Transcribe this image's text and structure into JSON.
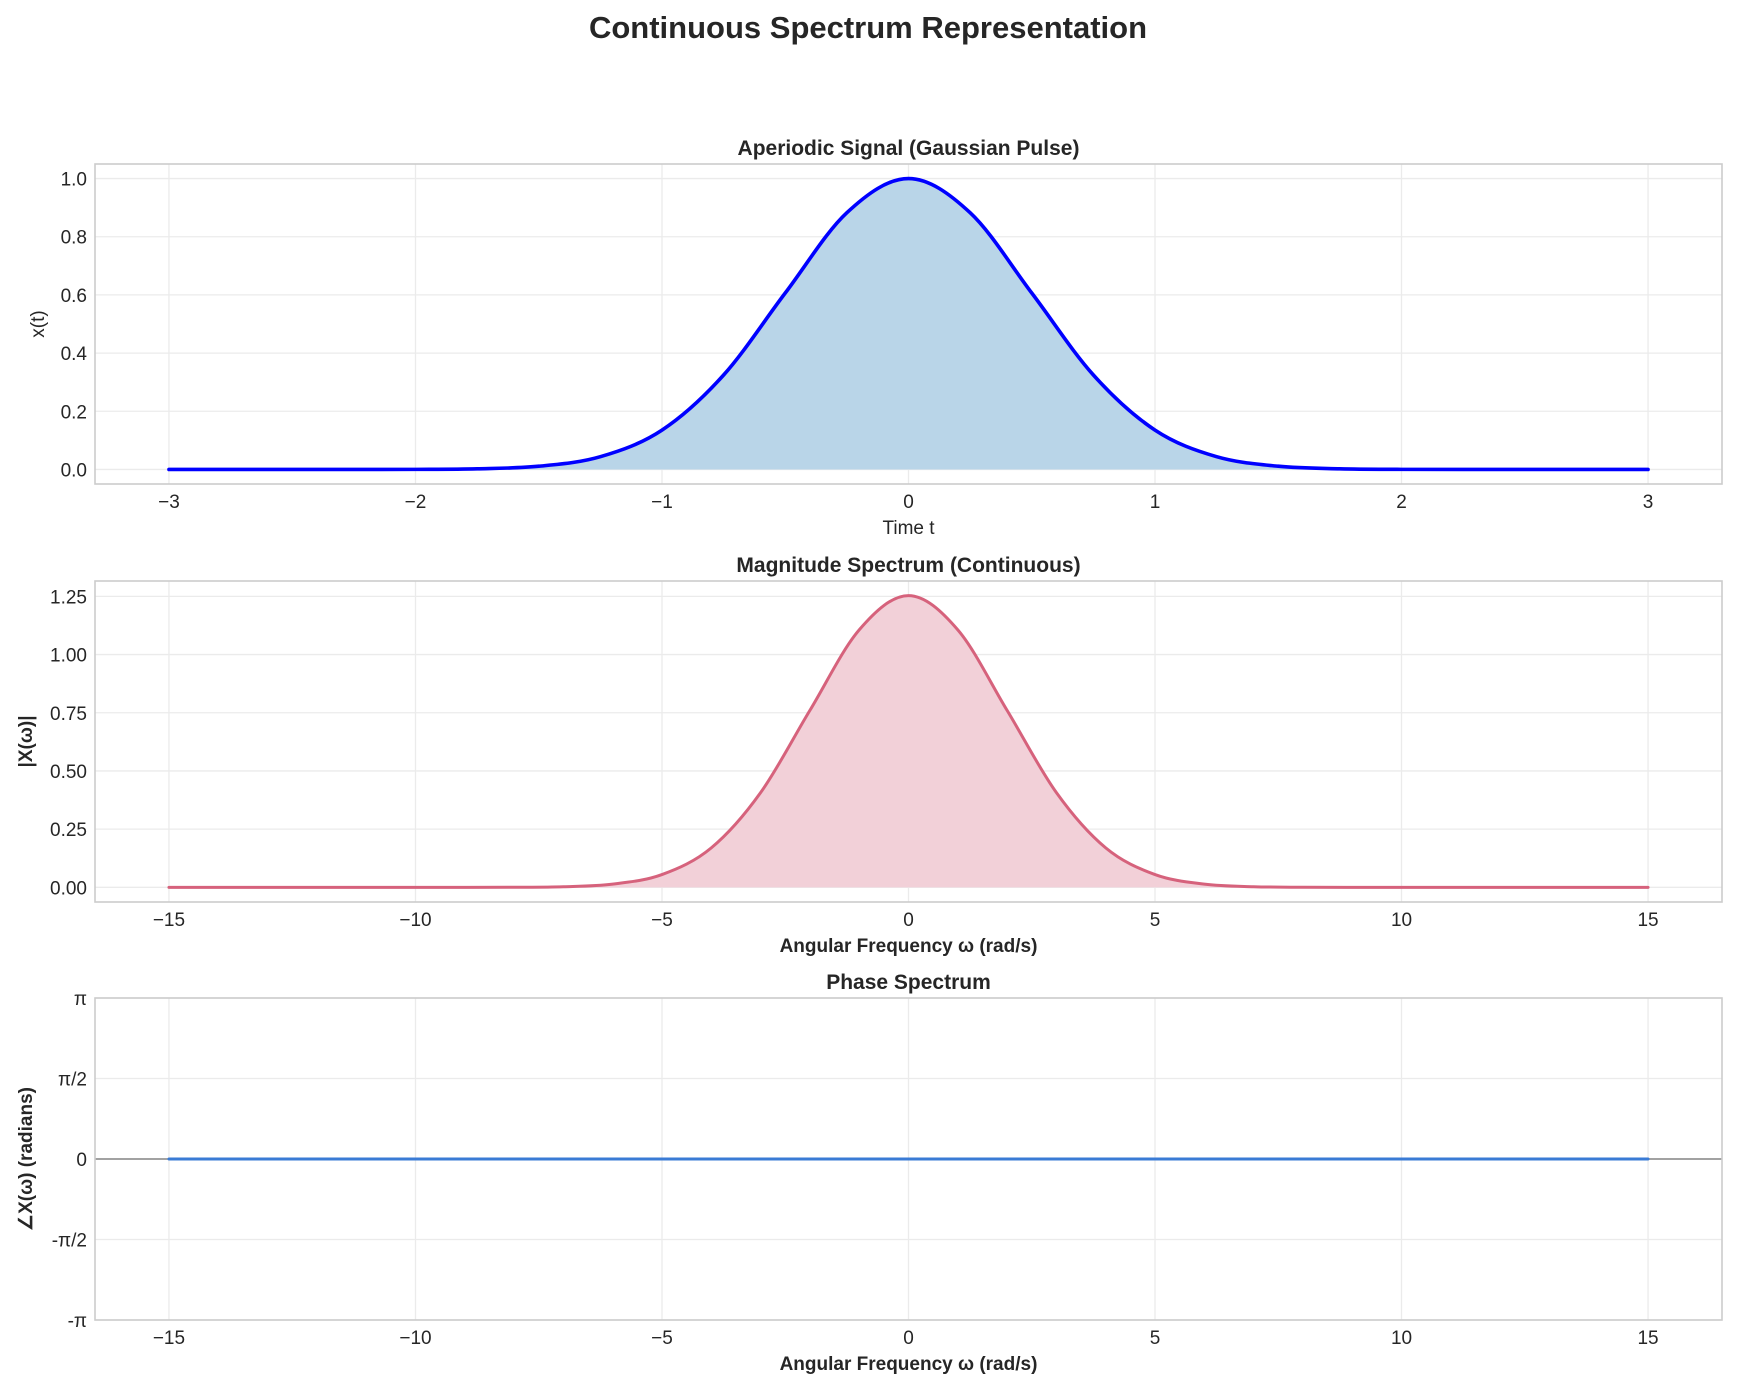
{
  "title": "Continuous Spectrum Representation",
  "chart_data": [
    {
      "type": "area",
      "title": "Aperiodic Signal (Gaussian Pulse)",
      "xlabel": "Time t",
      "ylabel": "x(t)",
      "xlim": [
        -3.3,
        3.3
      ],
      "ylim": [
        -0.05,
        1.05
      ],
      "xticks": [
        -3,
        -2,
        -1,
        0,
        1,
        2,
        3
      ],
      "xtick_labels": [
        "−3",
        "−2",
        "−1",
        "0",
        "1",
        "2",
        "3"
      ],
      "yticks": [
        0,
        0.2,
        0.4,
        0.6,
        0.8,
        1.0
      ],
      "ytick_labels": [
        "0.0",
        "0.2",
        "0.4",
        "0.6",
        "0.8",
        "1.0"
      ],
      "grid": true,
      "line_color": "#0000ff",
      "fill_color": "#b9d5e8",
      "x": [
        -3,
        -2.75,
        -2.5,
        -2.25,
        -2,
        -1.75,
        -1.5,
        -1.25,
        -1,
        -0.75,
        -0.5,
        -0.25,
        0,
        0.25,
        0.5,
        0.75,
        1,
        1.25,
        1.5,
        1.75,
        2,
        2.25,
        2.5,
        2.75,
        3
      ],
      "y": [
        0,
        0,
        0,
        0,
        0.0003,
        0.0022,
        0.0111,
        0.0439,
        0.1353,
        0.3247,
        0.6065,
        0.8825,
        1,
        0.8825,
        0.6065,
        0.3247,
        0.1353,
        0.0439,
        0.0111,
        0.0022,
        0.0003,
        0,
        0,
        0,
        0
      ]
    },
    {
      "type": "area",
      "title": "Magnitude Spectrum (Continuous)",
      "xlabel": "Angular Frequency ω (rad/s)",
      "ylabel": "|X(ω)|",
      "xlim": [
        -16.5,
        16.5
      ],
      "ylim": [
        -0.063,
        1.316
      ],
      "xticks": [
        -15,
        -10,
        -5,
        0,
        5,
        10,
        15
      ],
      "xtick_labels": [
        "−15",
        "−10",
        "−5",
        "0",
        "5",
        "10",
        "15"
      ],
      "yticks": [
        0,
        0.25,
        0.5,
        0.75,
        1.0,
        1.25
      ],
      "ytick_labels": [
        "0.00",
        "0.25",
        "0.50",
        "0.75",
        "1.00",
        "1.25"
      ],
      "grid": true,
      "line_color": "#d6627c",
      "fill_color": "#f2d0d8",
      "x": [
        -15,
        -14,
        -13,
        -12,
        -11,
        -10,
        -9,
        -8,
        -7,
        -6,
        -5,
        -4,
        -3,
        -2,
        -1,
        0,
        1,
        2,
        3,
        4,
        5,
        6,
        7,
        8,
        9,
        10,
        11,
        12,
        13,
        14,
        15
      ],
      "y": [
        0,
        0,
        0,
        0,
        0,
        0,
        0,
        0.0004,
        0.0027,
        0.0139,
        0.055,
        0.1696,
        0.4069,
        0.7602,
        1.1061,
        1.2533,
        1.1061,
        0.7602,
        0.4069,
        0.1696,
        0.055,
        0.0139,
        0.0027,
        0.0004,
        0,
        0,
        0,
        0,
        0,
        0,
        0
      ]
    },
    {
      "type": "line",
      "title": "Phase Spectrum",
      "xlabel": "Angular Frequency ω (rad/s)",
      "ylabel": "∠X(ω) (radians)",
      "xlim": [
        -16.5,
        16.5
      ],
      "ylim": [
        -3.14159,
        3.14159
      ],
      "xticks": [
        -15,
        -10,
        -5,
        0,
        5,
        10,
        15
      ],
      "xtick_labels": [
        "−15",
        "−10",
        "−5",
        "0",
        "5",
        "10",
        "15"
      ],
      "yticks": [
        -3.14159,
        -1.5708,
        0,
        1.5708,
        3.14159
      ],
      "ytick_labels": [
        "-π",
        "-π/2",
        "0",
        "π/2",
        "π"
      ],
      "grid": true,
      "zero_line": true,
      "line_color": "#3a7bd5",
      "x": [
        -15,
        15
      ],
      "y": [
        0,
        0
      ]
    }
  ]
}
